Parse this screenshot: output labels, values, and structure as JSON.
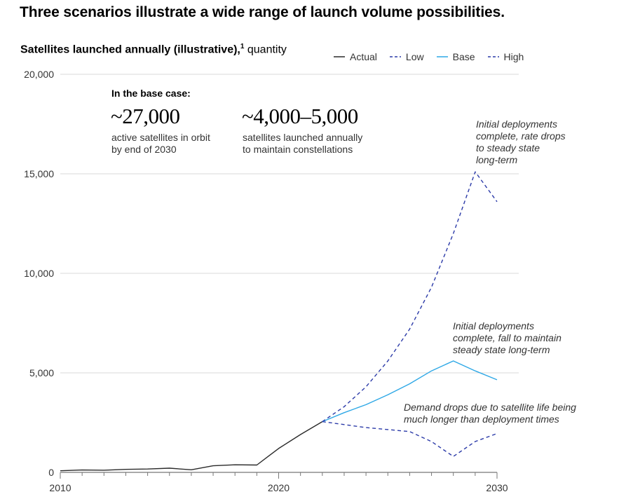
{
  "headline": "Three scenarios illustrate a wide range of launch volume possibilities.",
  "subtitle": {
    "bold": "Satellites launched annually (illustrative),",
    "footnote": "1",
    "rest": " quantity"
  },
  "legend": [
    {
      "label": "Actual",
      "color": "#2a2a2a",
      "style": "solid"
    },
    {
      "label": "Low",
      "color": "#2b3aa8",
      "style": "dashed"
    },
    {
      "label": "Base",
      "color": "#2ea8e6",
      "style": "solid"
    },
    {
      "label": "High",
      "color": "#2b3aa8",
      "style": "dashed"
    }
  ],
  "base_case": {
    "heading": "In the base case:",
    "stat1_value": "~27,000",
    "stat1_desc_line1": "active satellites in orbit",
    "stat1_desc_line2": "by end of 2030",
    "stat2_value": "~4,000–5,000",
    "stat2_desc_line1": "satellites launched annually",
    "stat2_desc_line2": "to maintain constellations"
  },
  "annotations": {
    "high_line1": "Initial deployments",
    "high_line2": "complete, rate drops",
    "high_line3": "to steady state",
    "high_line4": "long-term",
    "base_line1": "Initial deployments",
    "base_line2": "complete, fall to maintain",
    "base_line3": "steady state long-term",
    "low_line1": "Demand drops due to satellite life being",
    "low_line2": "much longer than deployment times"
  },
  "chart_data": {
    "type": "line",
    "title": "Satellites launched annually (illustrative), quantity",
    "xlabel": "",
    "ylabel": "",
    "xlim": [
      2010,
      2030
    ],
    "ylim": [
      0,
      20000
    ],
    "y_ticks": [
      0,
      5000,
      10000,
      15000,
      20000
    ],
    "y_tick_labels": [
      "0",
      "5,000",
      "10,000",
      "15,000",
      "20,000"
    ],
    "x_ticks": [
      2010,
      2020,
      2030
    ],
    "x_tick_labels": [
      "2010",
      "2020",
      "2030"
    ],
    "grid": true,
    "series": [
      {
        "name": "Actual",
        "x": [
          2010,
          2011,
          2012,
          2013,
          2014,
          2015,
          2016,
          2017,
          2018,
          2019,
          2020,
          2021,
          2022
        ],
        "values": [
          80,
          120,
          110,
          150,
          170,
          210,
          130,
          330,
          380,
          370,
          1200,
          1900,
          2550
        ]
      },
      {
        "name": "Low",
        "x": [
          2022,
          2023,
          2024,
          2025,
          2026,
          2027,
          2028,
          2029,
          2030
        ],
        "values": [
          2550,
          2400,
          2250,
          2150,
          2050,
          1550,
          800,
          1550,
          1950
        ]
      },
      {
        "name": "Base",
        "x": [
          2022,
          2023,
          2024,
          2025,
          2026,
          2027,
          2028,
          2029,
          2030
        ],
        "values": [
          2550,
          3000,
          3400,
          3900,
          4450,
          5100,
          5600,
          5100,
          4650
        ]
      },
      {
        "name": "High",
        "x": [
          2022,
          2023,
          2024,
          2025,
          2026,
          2027,
          2028,
          2029,
          2030
        ],
        "values": [
          2550,
          3300,
          4300,
          5600,
          7200,
          9300,
          12000,
          15100,
          13600
        ]
      }
    ]
  }
}
